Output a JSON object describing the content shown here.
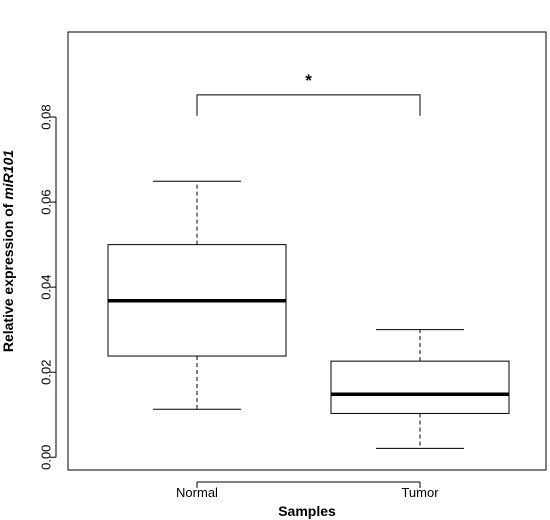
{
  "chart_data": {
    "type": "box",
    "title": "",
    "xlabel": "Samples",
    "ylabel_prefix": "Relative expression of ",
    "ylabel_gene": "miR101",
    "ylim": [
      -0.003,
      0.1
    ],
    "yticks": [
      0.0,
      0.02,
      0.04,
      0.06,
      0.08
    ],
    "ytick_labels": [
      "0.00",
      "0.02",
      "0.04",
      "0.06",
      "0.08"
    ],
    "grid": false,
    "categories": [
      "Normal",
      "Tumor"
    ],
    "boxes": [
      {
        "category": "Normal",
        "whisker_low": 0.0113,
        "q1": 0.0238,
        "median": 0.0368,
        "q3": 0.05,
        "whisker_high": 0.0649
      },
      {
        "category": "Tumor",
        "whisker_low": 0.0021,
        "q1": 0.0103,
        "median": 0.0148,
        "q3": 0.0226,
        "whisker_high": 0.03
      }
    ],
    "significance": {
      "from": "Normal",
      "to": "Tumor",
      "y_top": 0.0852,
      "y_bottom": 0.0803,
      "label": "*"
    },
    "colors": {
      "box_fill": "#ffffff",
      "stroke": "#000000"
    }
  }
}
